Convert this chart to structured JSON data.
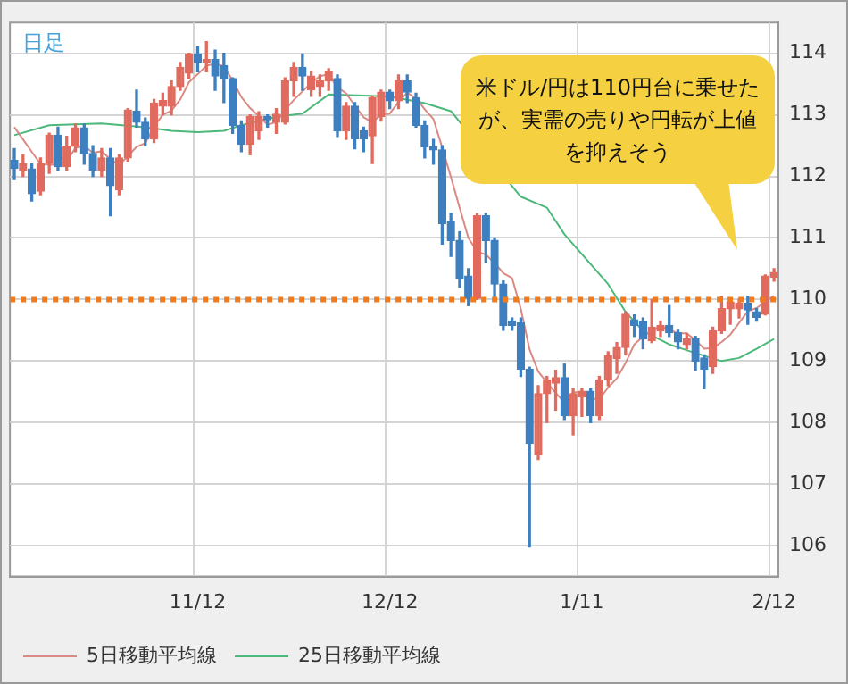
{
  "chart_data": {
    "type": "candlestick",
    "title": "日足",
    "categories": [
      null,
      null,
      null,
      null,
      null,
      null,
      null,
      null,
      null,
      null,
      null,
      null,
      null,
      null,
      null,
      null,
      null,
      null,
      null,
      null,
      null,
      "11/12",
      null,
      null,
      null,
      null,
      null,
      null,
      null,
      null,
      null,
      null,
      null,
      null,
      null,
      null,
      null,
      null,
      null,
      null,
      null,
      null,
      null,
      "12/12",
      null,
      null,
      null,
      null,
      null,
      null,
      null,
      null,
      null,
      null,
      null,
      null,
      null,
      null,
      null,
      null,
      null,
      null,
      null,
      null,
      null,
      "1/11",
      null,
      null,
      null,
      null,
      null,
      null,
      null,
      null,
      null,
      null,
      null,
      null,
      null,
      null,
      null,
      null,
      null,
      null,
      null,
      null,
      null,
      "2/12"
    ],
    "ohlc": [
      [
        112.26,
        112.45,
        111.95,
        112.13
      ],
      [
        112.1,
        112.35,
        112.0,
        112.21
      ],
      [
        112.12,
        112.2,
        111.6,
        111.72
      ],
      [
        111.76,
        112.3,
        111.7,
        112.21
      ],
      [
        112.21,
        112.7,
        112.05,
        112.67
      ],
      [
        112.67,
        112.8,
        112.1,
        112.16
      ],
      [
        112.16,
        112.65,
        112.1,
        112.49
      ],
      [
        112.49,
        112.85,
        112.4,
        112.79
      ],
      [
        112.79,
        112.85,
        112.2,
        112.37
      ],
      [
        112.37,
        112.5,
        112.0,
        112.1
      ],
      [
        112.1,
        112.45,
        112.0,
        112.3
      ],
      [
        112.3,
        112.45,
        111.36,
        111.85
      ],
      [
        111.78,
        112.35,
        111.7,
        112.3
      ],
      [
        112.3,
        113.1,
        112.25,
        113.08
      ],
      [
        113.06,
        113.4,
        112.8,
        112.88
      ],
      [
        112.88,
        112.95,
        112.5,
        112.61
      ],
      [
        112.61,
        113.25,
        112.55,
        113.19
      ],
      [
        113.14,
        113.35,
        113.0,
        113.23
      ],
      [
        113.14,
        113.55,
        113.0,
        113.46
      ],
      [
        113.46,
        113.85,
        113.4,
        113.77
      ],
      [
        113.68,
        114.0,
        113.6,
        113.99
      ],
      [
        113.99,
        114.1,
        113.7,
        113.86
      ],
      [
        113.86,
        114.19,
        113.7,
        113.9
      ],
      [
        113.9,
        114.05,
        113.4,
        113.63
      ],
      [
        113.8,
        114.0,
        113.2,
        113.59
      ],
      [
        113.59,
        113.6,
        112.7,
        112.83
      ],
      [
        112.83,
        112.9,
        112.4,
        112.52
      ],
      [
        112.52,
        113.0,
        112.35,
        112.97
      ],
      [
        112.74,
        113.05,
        112.6,
        112.97
      ],
      [
        112.97,
        113.0,
        112.8,
        112.92
      ],
      [
        112.88,
        113.1,
        112.7,
        113.01
      ],
      [
        112.88,
        113.6,
        112.85,
        113.55
      ],
      [
        113.55,
        113.85,
        113.3,
        113.77
      ],
      [
        113.77,
        113.99,
        113.4,
        113.63
      ],
      [
        113.41,
        113.7,
        113.3,
        113.63
      ],
      [
        113.46,
        113.65,
        113.3,
        113.55
      ],
      [
        113.55,
        113.75,
        113.4,
        113.7
      ],
      [
        113.59,
        113.65,
        112.65,
        112.74
      ],
      [
        112.74,
        113.2,
        112.6,
        113.14
      ],
      [
        113.14,
        113.2,
        112.45,
        112.61
      ],
      [
        112.74,
        112.8,
        112.4,
        112.61
      ],
      [
        112.66,
        113.3,
        112.21,
        113.28
      ],
      [
        112.97,
        113.4,
        112.9,
        113.37
      ],
      [
        113.37,
        113.4,
        113.1,
        113.23
      ],
      [
        113.23,
        113.65,
        113.1,
        113.55
      ],
      [
        113.55,
        113.65,
        113.2,
        113.37
      ],
      [
        113.28,
        113.35,
        112.8,
        112.83
      ],
      [
        112.83,
        112.9,
        112.3,
        112.48
      ],
      [
        112.48,
        112.6,
        112.2,
        112.43
      ],
      [
        112.43,
        112.5,
        110.9,
        111.23
      ],
      [
        111.27,
        111.4,
        110.7,
        110.96
      ],
      [
        110.96,
        111.1,
        110.2,
        110.34
      ],
      [
        110.38,
        110.5,
        109.9,
        110.02
      ],
      [
        110.02,
        111.4,
        110.0,
        111.36
      ],
      [
        111.36,
        111.4,
        110.6,
        110.96
      ],
      [
        110.96,
        111.0,
        110.0,
        110.25
      ],
      [
        110.25,
        110.3,
        109.5,
        109.58
      ],
      [
        109.65,
        109.7,
        109.5,
        109.58
      ],
      [
        109.62,
        109.7,
        108.75,
        108.87
      ],
      [
        108.87,
        108.9,
        105.98,
        107.66
      ],
      [
        107.48,
        108.6,
        107.4,
        108.47
      ],
      [
        108.47,
        108.75,
        108.0,
        108.69
      ],
      [
        108.64,
        108.85,
        108.2,
        108.73
      ],
      [
        108.73,
        108.95,
        108.05,
        108.11
      ],
      [
        108.11,
        108.55,
        107.8,
        108.47
      ],
      [
        108.42,
        108.55,
        108.1,
        108.51
      ],
      [
        108.51,
        108.55,
        108.0,
        108.11
      ],
      [
        108.11,
        108.75,
        108.05,
        108.69
      ],
      [
        108.69,
        109.15,
        108.6,
        109.09
      ],
      [
        109.04,
        109.3,
        108.8,
        109.22
      ],
      [
        109.22,
        109.8,
        109.1,
        109.76
      ],
      [
        109.67,
        109.75,
        109.4,
        109.58
      ],
      [
        109.64,
        109.7,
        109.2,
        109.36
      ],
      [
        109.33,
        110.0,
        109.3,
        109.55
      ],
      [
        109.49,
        109.65,
        109.4,
        109.58
      ],
      [
        109.58,
        109.9,
        109.4,
        109.46
      ],
      [
        109.46,
        109.5,
        109.2,
        109.31
      ],
      [
        109.27,
        109.45,
        109.2,
        109.36
      ],
      [
        109.36,
        109.4,
        108.85,
        109.0
      ],
      [
        109.05,
        109.1,
        108.55,
        108.87
      ],
      [
        108.91,
        109.55,
        108.8,
        109.49
      ],
      [
        109.49,
        110.05,
        109.45,
        109.85
      ],
      [
        109.85,
        110.0,
        109.6,
        109.96
      ],
      [
        109.85,
        110.0,
        109.7,
        109.94
      ],
      [
        109.94,
        110.05,
        109.6,
        109.83
      ],
      [
        109.8,
        109.85,
        109.65,
        109.71
      ],
      [
        109.76,
        110.4,
        109.75,
        110.38
      ],
      [
        110.36,
        110.5,
        110.3,
        110.44
      ]
    ],
    "colors": [
      "#3d7fbf",
      "#e06b5e",
      "#3d7fbf",
      "#e06b5e",
      "#e06b5e",
      "#3d7fbf",
      "#e06b5e",
      "#e06b5e",
      "#3d7fbf",
      "#3d7fbf",
      "#e06b5e",
      "#3d7fbf",
      "#e06b5e",
      "#e06b5e",
      "#3d7fbf",
      "#3d7fbf",
      "#e06b5e",
      "#e06b5e",
      "#e06b5e",
      "#e06b5e",
      "#e06b5e",
      "#3d7fbf",
      "#e06b5e",
      "#3d7fbf",
      "#3d7fbf",
      "#3d7fbf",
      "#3d7fbf",
      "#e06b5e",
      "#e06b5e",
      "#3d7fbf",
      "#e06b5e",
      "#e06b5e",
      "#e06b5e",
      "#3d7fbf",
      "#e06b5e",
      "#e06b5e",
      "#e06b5e",
      "#3d7fbf",
      "#e06b5e",
      "#3d7fbf",
      "#3d7fbf",
      "#e06b5e",
      "#e06b5e",
      "#3d7fbf",
      "#e06b5e",
      "#3d7fbf",
      "#3d7fbf",
      "#3d7fbf",
      "#3d7fbf",
      "#3d7fbf",
      "#3d7fbf",
      "#3d7fbf",
      "#3d7fbf",
      "#e06b5e",
      "#3d7fbf",
      "#3d7fbf",
      "#3d7fbf",
      "#3d7fbf",
      "#3d7fbf",
      "#3d7fbf",
      "#e06b5e",
      "#e06b5e",
      "#e06b5e",
      "#3d7fbf",
      "#e06b5e",
      "#e06b5e",
      "#3d7fbf",
      "#e06b5e",
      "#e06b5e",
      "#e06b5e",
      "#e06b5e",
      "#3d7fbf",
      "#3d7fbf",
      "#e06b5e",
      "#e06b5e",
      "#3d7fbf",
      "#3d7fbf",
      "#e06b5e",
      "#3d7fbf",
      "#3d7fbf",
      "#e06b5e",
      "#e06b5e",
      "#e06b5e",
      "#e06b5e",
      "#3d7fbf",
      "#3d7fbf",
      "#e06b5e",
      "#e06b5e"
    ],
    "series": [
      {
        "name": "5日移動平均線",
        "type": "line",
        "color": "#d98a84",
        "values": [
          112.8,
          112.6,
          112.4,
          112.2,
          112.19,
          112.19,
          112.25,
          112.46,
          112.5,
          112.38,
          112.41,
          112.28,
          112.18,
          112.33,
          112.48,
          112.54,
          112.81,
          113.0,
          113.07,
          113.25,
          113.53,
          113.66,
          113.8,
          113.83,
          113.79,
          113.56,
          113.29,
          113.11,
          112.98,
          112.84,
          112.88,
          113.08,
          113.24,
          113.38,
          113.52,
          113.63,
          113.66,
          113.45,
          113.35,
          113.15,
          112.96,
          112.88,
          113.0,
          113.02,
          113.21,
          113.36,
          113.27,
          113.09,
          112.93,
          112.47,
          111.99,
          111.49,
          111.0,
          110.78,
          110.73,
          110.59,
          110.43,
          110.35,
          109.85,
          109.19,
          108.83,
          108.65,
          108.48,
          108.33,
          108.49,
          108.5,
          108.39,
          108.38,
          108.57,
          108.72,
          108.97,
          109.27,
          109.4,
          109.49,
          109.57,
          109.51,
          109.45,
          109.45,
          109.34,
          109.2,
          109.21,
          109.31,
          109.43,
          109.62,
          109.81,
          109.86,
          109.96,
          110.06
        ]
      },
      {
        "name": "25日移動平均線",
        "type": "line",
        "color": "#4cb87a",
        "values": [
          112.67,
          null,
          null,
          null,
          112.83,
          null,
          null,
          null,
          null,
          null,
          112.86,
          null,
          null,
          null,
          null,
          112.8,
          null,
          null,
          112.74,
          null,
          null,
          112.72,
          null,
          null,
          112.74,
          null,
          112.83,
          null,
          null,
          null,
          112.97,
          null,
          null,
          113.02,
          null,
          null,
          113.33,
          null,
          null,
          null,
          null,
          null,
          null,
          113.3,
          null,
          null,
          null,
          113.19,
          null,
          null,
          113.06,
          null,
          null,
          null,
          null,
          null,
          null,
          null,
          111.67,
          null,
          null,
          111.49,
          null,
          111.06,
          null,
          null,
          null,
          null,
          110.25,
          null,
          109.8,
          null,
          109.49,
          null,
          null,
          109.27,
          null,
          null,
          109.13,
          null,
          null,
          109.0,
          null,
          109.05,
          null,
          109.2,
          null,
          109.36
        ]
      }
    ],
    "ylim": [
      105.5,
      114.5
    ],
    "yticks": [
      106,
      107,
      108,
      109,
      110,
      111,
      112,
      113,
      114
    ],
    "grid": true,
    "legend": "bottom",
    "marker": "none",
    "ref_lines": [
      {
        "axis": "y",
        "value": 110,
        "color": "#f07a1e",
        "line_style": "dotted"
      }
    ],
    "annotations": [
      "米ドル/円は110円台に乗せたが、実需の売りや円転が上値を抑えそう"
    ]
  }
}
